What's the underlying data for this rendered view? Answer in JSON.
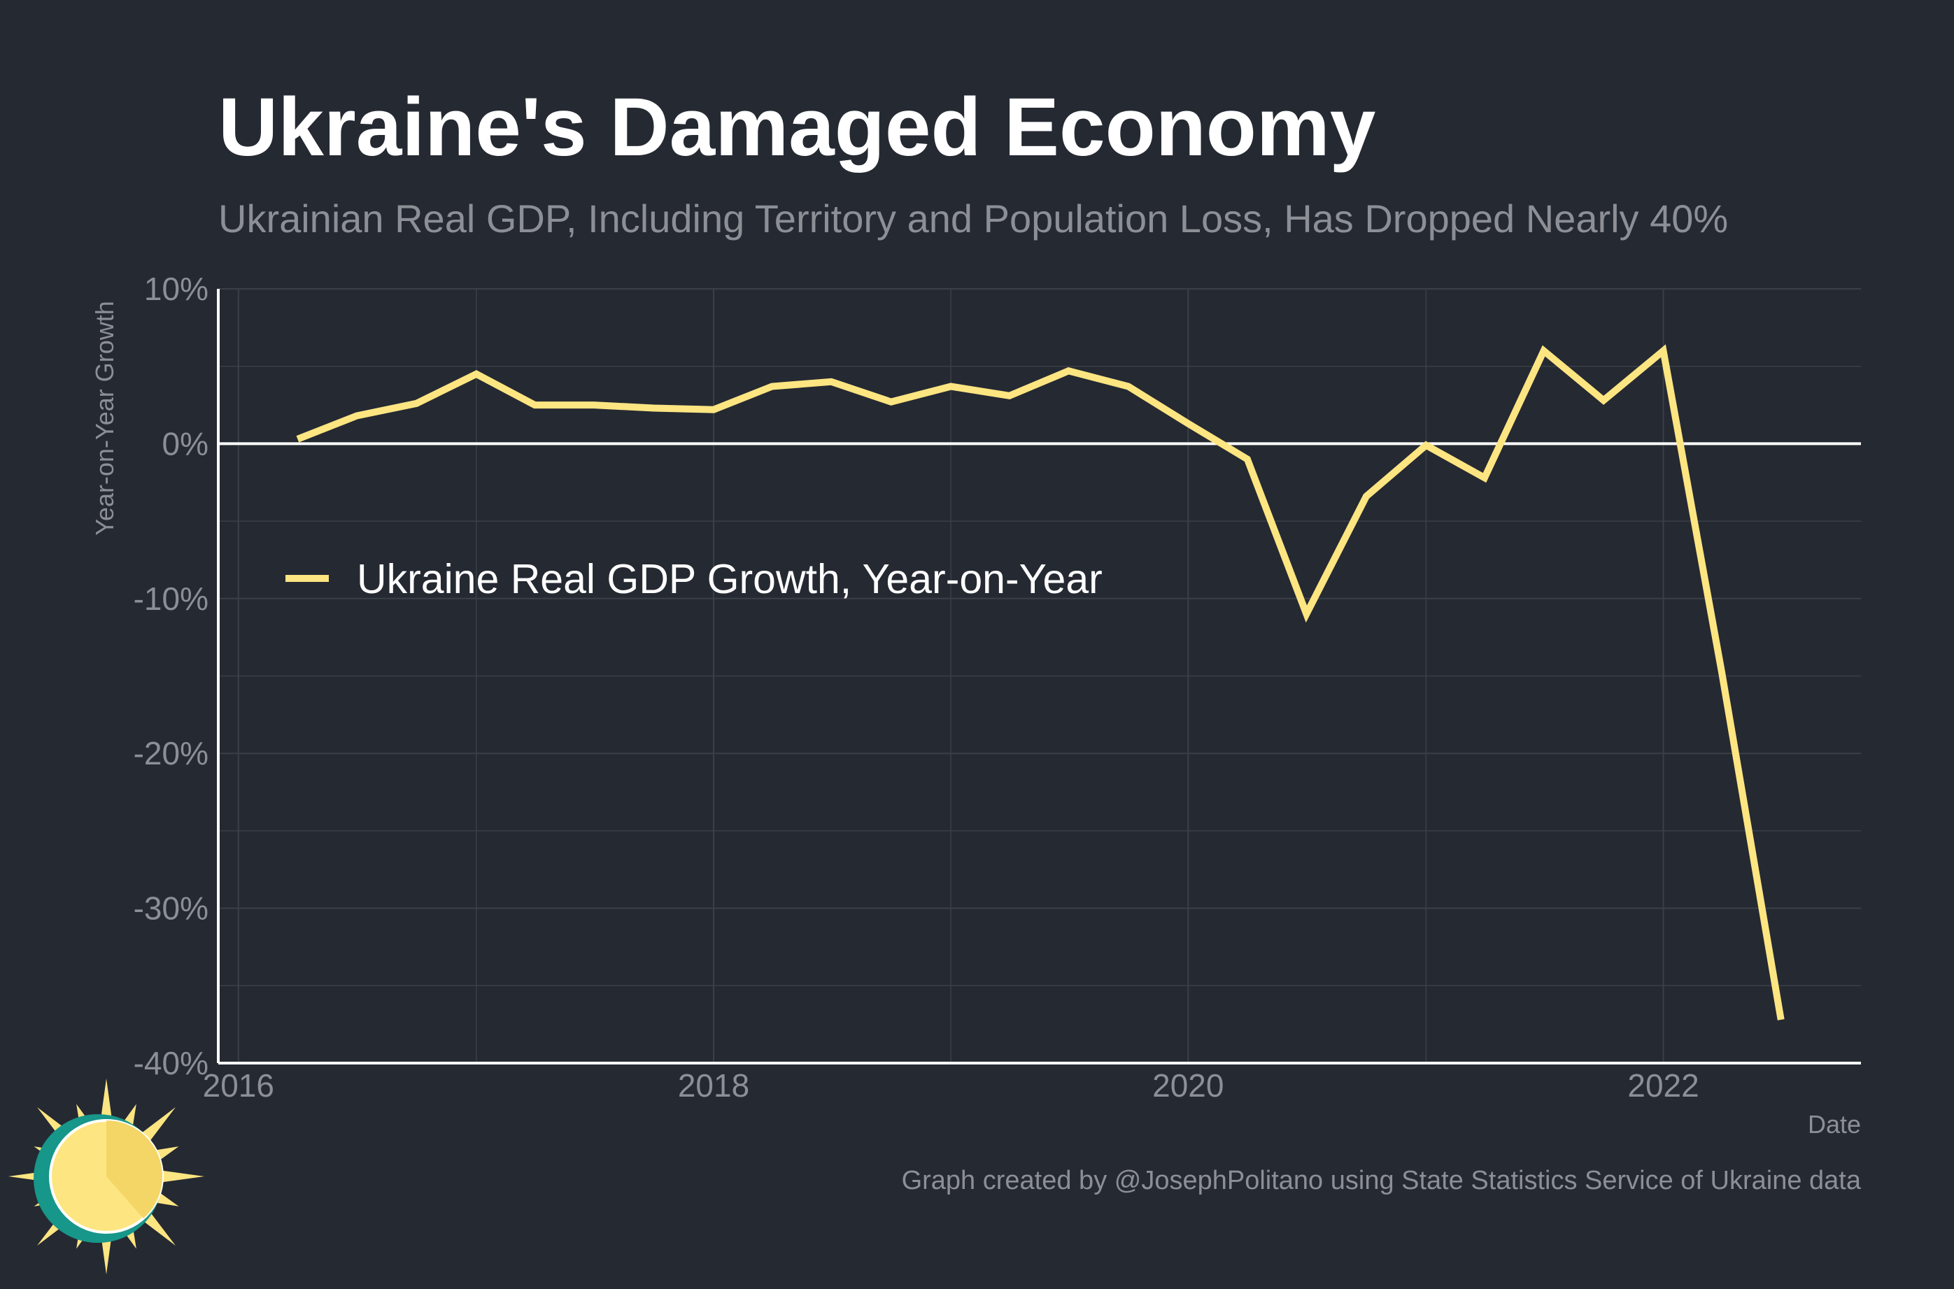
{
  "title": "Ukraine's Damaged Economy",
  "subtitle": "Ukrainian Real GDP, Including Territory and Population Loss, Has Dropped Nearly 40%",
  "caption": "Graph created by @JosephPolitano using State Statistics Service of Ukraine data",
  "colors": {
    "background": "#252932",
    "line": "#fde581",
    "zero_line": "#ffffff",
    "grid": "#3b3f48"
  },
  "logo": {
    "icon": "sun-logo-icon"
  },
  "chart_data": {
    "type": "line",
    "title": "Ukraine's Damaged Economy",
    "subtitle": "Ukrainian Real GDP, Including Territory and Population Loss, Has Dropped Nearly 40%",
    "xlabel": "Date",
    "ylabel": "Year-on-Year Growth",
    "xlim": [
      "2015-12-01",
      "2022-11-01"
    ],
    "ylim": [
      -40,
      10
    ],
    "x_ticks": [
      {
        "date": "2016-01-01",
        "label": "2016"
      },
      {
        "date": "2018-01-01",
        "label": "2018"
      },
      {
        "date": "2020-01-01",
        "label": "2020"
      },
      {
        "date": "2022-01-01",
        "label": "2022"
      }
    ],
    "y_ticks": [
      {
        "value": 10,
        "label": "10%"
      },
      {
        "value": 0,
        "label": "0%"
      },
      {
        "value": -10,
        "label": "-10%"
      },
      {
        "value": -20,
        "label": "-20%"
      },
      {
        "value": -30,
        "label": "-30%"
      },
      {
        "value": -40,
        "label": "-40%"
      }
    ],
    "grid": true,
    "legend_position": "middle-left",
    "series": [
      {
        "name": "Ukraine Real GDP Growth, Year-on-Year",
        "color": "#fde581",
        "x": [
          "2016-04-01",
          "2016-07-01",
          "2016-10-01",
          "2017-01-01",
          "2017-04-01",
          "2017-07-01",
          "2017-10-01",
          "2018-01-01",
          "2018-04-01",
          "2018-07-01",
          "2018-10-01",
          "2019-01-01",
          "2019-04-01",
          "2019-07-01",
          "2019-10-01",
          "2020-01-01",
          "2020-04-01",
          "2020-07-01",
          "2020-10-01",
          "2021-01-01",
          "2021-04-01",
          "2021-07-01",
          "2021-10-01",
          "2022-01-01",
          "2022-04-01",
          "2022-07-01"
        ],
        "y": [
          0.3,
          1.8,
          2.6,
          4.5,
          2.5,
          2.5,
          2.3,
          2.2,
          3.7,
          4.0,
          2.7,
          3.7,
          3.1,
          4.7,
          3.7,
          1.3,
          -1.0,
          -11.0,
          -3.4,
          -0.1,
          -2.2,
          6.0,
          2.8,
          6.0,
          -14.8,
          -37.2
        ]
      }
    ]
  }
}
